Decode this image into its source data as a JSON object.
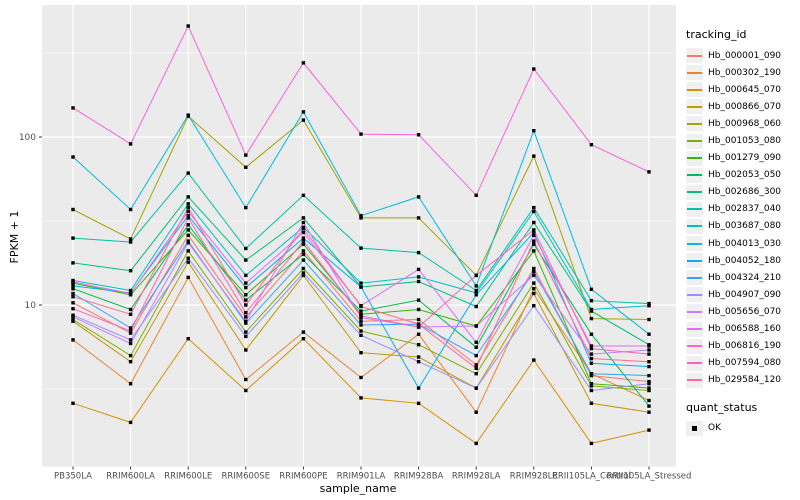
{
  "chart_data": {
    "type": "line",
    "title": "",
    "xlabel": "sample_name",
    "ylabel": "FPKM + 1",
    "y_scale": "log10",
    "y_tick_labels": [
      "100",
      "10"
    ],
    "y_tick_values": [
      100,
      10
    ],
    "y_minor_values": [
      316.23,
      31.62,
      3.162
    ],
    "ylim": [
      1.05,
      600
    ],
    "grid": true,
    "legend_position": "right",
    "point_marker": "black-square",
    "panel_bg": "#EBEBEB",
    "grid_color": "#FFFFFF",
    "tick_text_color": "#4D4D4D",
    "categories": [
      "PB350LA",
      "RRIM600LA",
      "RRIM600LE",
      "RRIM600SE",
      "RRIM600PE",
      "RRIM901LA",
      "RRIM928BA",
      "RRIM928LA",
      "RRIM928LE",
      "RRII105LA_Control",
      "RRII105LA_Stressed"
    ],
    "series": [
      {
        "name": "Hb_000001_090",
        "color": "#F8766D",
        "values": [
          10.3,
          6.8,
          26,
          8.5,
          21,
          8.0,
          8.2,
          4.4,
          16.5,
          3.8,
          3.5
        ]
      },
      {
        "name": "Hb_000302_190",
        "color": "#EA8331",
        "values": [
          6.2,
          3.4,
          14.6,
          3.6,
          6.9,
          3.7,
          6.7,
          2.3,
          12.5,
          3.9,
          2.7
        ]
      },
      {
        "name": "Hb_000645_070",
        "color": "#D89000",
        "values": [
          2.6,
          2.0,
          6.3,
          3.1,
          6.3,
          2.8,
          2.6,
          1.5,
          4.7,
          1.5,
          1.8
        ]
      },
      {
        "name": "Hb_000866_070",
        "color": "#C09B00",
        "values": [
          8.0,
          4.6,
          18,
          5.4,
          15,
          5.2,
          4.9,
          3.2,
          11.7,
          2.6,
          2.3
        ]
      },
      {
        "name": "Hb_000968_060",
        "color": "#A3A500",
        "values": [
          37,
          24.7,
          133,
          66,
          126,
          33,
          33,
          15,
          77,
          8.3,
          8.2
        ]
      },
      {
        "name": "Hb_001053_080",
        "color": "#7CAE00",
        "values": [
          8.2,
          5.0,
          21,
          6.9,
          16.5,
          7.0,
          5.8,
          3.9,
          13.5,
          3.3,
          3.1
        ]
      },
      {
        "name": "Hb_001279_090",
        "color": "#39B600",
        "values": [
          13.5,
          11.5,
          28,
          11.5,
          23,
          8.8,
          9.4,
          7.5,
          21,
          3.4,
          3.2
        ]
      },
      {
        "name": "Hb_002053_050",
        "color": "#00BB4E",
        "values": [
          12.5,
          9.4,
          30,
          10.7,
          20,
          9.2,
          10.7,
          5.6,
          23,
          6.7,
          2.5
        ]
      },
      {
        "name": "Hb_002686_300",
        "color": "#00BF7D",
        "values": [
          17.8,
          16,
          44,
          18.5,
          33,
          12.8,
          13.8,
          9.8,
          31,
          9.2,
          5.8
        ]
      },
      {
        "name": "Hb_002837_040",
        "color": "#00C1A3",
        "values": [
          25,
          23.7,
          61,
          21.7,
          45,
          21.8,
          20.5,
          12.2,
          38,
          10.6,
          10.2
        ]
      },
      {
        "name": "Hb_003687_080",
        "color": "#00BFC4",
        "values": [
          14,
          12.2,
          40,
          15,
          29,
          13.5,
          14.7,
          11.8,
          36,
          9.4,
          9.9
        ]
      },
      {
        "name": "Hb_004013_030",
        "color": "#00BAE0",
        "values": [
          76,
          37,
          135,
          38,
          141,
          34,
          44,
          13,
          109,
          12.4,
          6.7
        ]
      },
      {
        "name": "Hb_004052_180",
        "color": "#00B0F6",
        "values": [
          13,
          11.8,
          34,
          12.7,
          25,
          12.8,
          3.2,
          11.5,
          27,
          4.5,
          4.3
        ]
      },
      {
        "name": "Hb_004324_210",
        "color": "#35A2FF",
        "values": [
          11.7,
          7.3,
          24,
          7.8,
          18.5,
          7.6,
          7.7,
          5.0,
          15.8,
          3.9,
          3.8
        ]
      },
      {
        "name": "Hb_004907_090",
        "color": "#9590FF",
        "values": [
          8.7,
          6.2,
          19,
          6.5,
          15.5,
          6.6,
          4.6,
          3.2,
          9.9,
          3.1,
          3.4
        ]
      },
      {
        "name": "Hb_005656_070",
        "color": "#C77CFF",
        "values": [
          8.5,
          5.9,
          23.5,
          8.0,
          31,
          8.4,
          7.4,
          7.5,
          15,
          5.1,
          5.4
        ]
      },
      {
        "name": "Hb_006588_160",
        "color": "#E76BF3",
        "values": [
          13.7,
          11.7,
          36,
          13.5,
          27,
          9.9,
          16.3,
          6.0,
          26,
          5.7,
          5.7
        ]
      },
      {
        "name": "Hb_006816_190",
        "color": "#FA62DB",
        "values": [
          149,
          91,
          458,
          78,
          276,
          104,
          103,
          45,
          254,
          90,
          62
        ]
      },
      {
        "name": "Hb_007594_080",
        "color": "#FF62BC",
        "values": [
          9.5,
          7.0,
          33,
          9.0,
          24,
          8.6,
          7.4,
          15,
          28,
          5.5,
          5.1
        ]
      },
      {
        "name": "Hb_029584_120",
        "color": "#FF6A98",
        "values": [
          11.2,
          8.8,
          38,
          10.0,
          28.5,
          9.8,
          7.7,
          4.2,
          24,
          4.8,
          4.6
        ]
      }
    ]
  },
  "legend": {
    "tracking_title": "tracking_id",
    "quant_title": "quant_status",
    "quant_items": [
      {
        "label": "OK"
      }
    ]
  },
  "axes": {
    "x_title": "sample_name",
    "y_title": "FPKM + 1"
  }
}
